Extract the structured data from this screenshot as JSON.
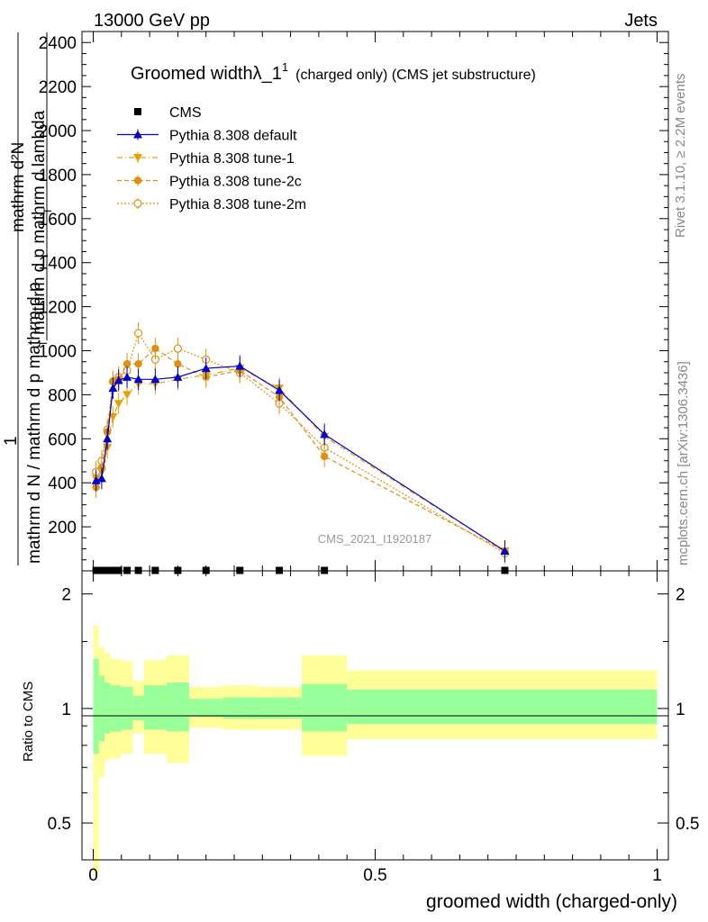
{
  "header": {
    "left": "13000 GeV pp",
    "right": "Jets"
  },
  "side_text": {
    "top": "Rivet 3.1.10, ≥ 2.2M events",
    "bottom": "mcplots.cern.ch [arXiv:1306.3436]"
  },
  "watermark": "CMS_2021_I1920187",
  "title": {
    "main": "Groomed widthλ_1",
    "sup": "1",
    "sub": "(charged only) (CMS jet substructure)"
  },
  "ylabel_main": {
    "numerator_line1": "mathrm d²N",
    "numerator_line2": "mathrm d p  mathrm d lambda",
    "numerator_sub": "T",
    "prefix": "1",
    "denominator": "mathrm d N / mathrm d p  mathrm d p",
    "denominator_sub": "T"
  },
  "ylabel_ratio": "Ratio to CMS",
  "xlabel": "groomed width (charged-only)",
  "colors": {
    "default": "#0000cc",
    "orange": "#e8a000",
    "dark_orange": "#e09010",
    "green": "#99ff99",
    "yellow": "#ffff99"
  },
  "chart_data": [
    {
      "type": "line",
      "xlim": [
        -0.02,
        1.02
      ],
      "ylim": [
        0,
        2450
      ],
      "yticks": [
        200,
        400,
        600,
        800,
        1000,
        1200,
        1400,
        1600,
        1800,
        2000,
        2200,
        2400
      ],
      "ytick_labels": [
        "200",
        "400",
        "600",
        "800",
        "1000",
        "1200",
        "1400",
        "1600",
        "1800",
        "2000",
        "2200",
        "2400"
      ],
      "legend": [
        "CMS",
        "Pythia 8.308 default",
        "Pythia 8.308 tune-1",
        "Pythia 8.308 tune-2c",
        "Pythia 8.308 tune-2m"
      ],
      "legend_position": "top-left",
      "cms": {
        "name": "CMS",
        "x": [
          0.005,
          0.015,
          0.025,
          0.035,
          0.045,
          0.06,
          0.08,
          0.11,
          0.15,
          0.2,
          0.26,
          0.33,
          0.41,
          0.73
        ],
        "y": [
          2,
          2,
          2,
          2,
          2,
          2,
          2,
          2,
          2,
          2,
          2,
          2,
          2,
          2
        ]
      },
      "series": [
        {
          "name": "Pythia 8.308 default",
          "style": "solid-triangle-up",
          "x": [
            0.005,
            0.015,
            0.025,
            0.035,
            0.045,
            0.06,
            0.08,
            0.11,
            0.15,
            0.2,
            0.26,
            0.33,
            0.41,
            0.73
          ],
          "y": [
            410,
            420,
            600,
            830,
            865,
            880,
            870,
            870,
            880,
            920,
            930,
            820,
            620,
            90
          ]
        },
        {
          "name": "Pythia 8.308 tune-1",
          "style": "dashdot-triangle-down",
          "x": [
            0.005,
            0.015,
            0.025,
            0.035,
            0.045,
            0.06,
            0.08,
            0.11,
            0.15,
            0.2,
            0.26,
            0.33,
            0.41,
            0.73
          ],
          "y": [
            420,
            450,
            560,
            700,
            760,
            800,
            850,
            850,
            870,
            890,
            920,
            830,
            610,
            90
          ]
        },
        {
          "name": "Pythia 8.308 tune-2c",
          "style": "dashed-circle",
          "x": [
            0.005,
            0.015,
            0.025,
            0.035,
            0.045,
            0.06,
            0.08,
            0.11,
            0.15,
            0.2,
            0.26,
            0.33,
            0.41,
            0.73
          ],
          "y": [
            380,
            470,
            630,
            860,
            870,
            940,
            940,
            1010,
            940,
            880,
            910,
            790,
            520,
            90
          ]
        },
        {
          "name": "Pythia 8.308 tune-2m",
          "style": "dotted-open-circle",
          "x": [
            0.005,
            0.015,
            0.025,
            0.035,
            0.045,
            0.06,
            0.08,
            0.11,
            0.15,
            0.2,
            0.26,
            0.33,
            0.41,
            0.73
          ],
          "y": [
            450,
            500,
            640,
            860,
            880,
            910,
            1080,
            960,
            1010,
            960,
            900,
            760,
            560,
            80
          ]
        }
      ]
    },
    {
      "type": "area",
      "title": "",
      "ylabel": "Ratio to CMS",
      "xlabel": "groomed width (charged-only)",
      "xlim": [
        -0.02,
        1.02
      ],
      "ylim": [
        0.4,
        2.3
      ],
      "log_y": true,
      "yticks": [
        0.5,
        1,
        2
      ],
      "ytick_labels": [
        "0.5",
        "1",
        "2"
      ],
      "xticks": [
        0,
        0.5,
        1
      ],
      "xtick_labels": [
        "0",
        "0.5",
        "1"
      ],
      "bins": [
        {
          "lo": 0.0,
          "hi": 0.01,
          "y_lo": 0.37,
          "y_hi": 1.65,
          "g_lo": 0.76,
          "g_hi": 1.35
        },
        {
          "lo": 0.01,
          "hi": 0.02,
          "y_lo": 0.66,
          "y_hi": 1.45,
          "g_lo": 0.82,
          "g_hi": 1.22
        },
        {
          "lo": 0.02,
          "hi": 0.03,
          "y_lo": 0.73,
          "y_hi": 1.4,
          "g_lo": 0.86,
          "g_hi": 1.17
        },
        {
          "lo": 0.03,
          "hi": 0.05,
          "y_lo": 0.74,
          "y_hi": 1.35,
          "g_lo": 0.87,
          "g_hi": 1.15
        },
        {
          "lo": 0.05,
          "hi": 0.07,
          "y_lo": 0.76,
          "y_hi": 1.33,
          "g_lo": 0.88,
          "g_hi": 1.14
        },
        {
          "lo": 0.07,
          "hi": 0.09,
          "y_lo": 0.86,
          "y_hi": 1.18,
          "g_lo": 0.93,
          "g_hi": 1.08
        },
        {
          "lo": 0.09,
          "hi": 0.13,
          "y_lo": 0.76,
          "y_hi": 1.34,
          "g_lo": 0.88,
          "g_hi": 1.15
        },
        {
          "lo": 0.13,
          "hi": 0.17,
          "y_lo": 0.72,
          "y_hi": 1.38,
          "g_lo": 0.87,
          "g_hi": 1.17
        },
        {
          "lo": 0.17,
          "hi": 0.23,
          "y_lo": 0.89,
          "y_hi": 1.14,
          "g_lo": 0.95,
          "g_hi": 1.06
        },
        {
          "lo": 0.23,
          "hi": 0.29,
          "y_lo": 0.88,
          "y_hi": 1.15,
          "g_lo": 0.94,
          "g_hi": 1.07
        },
        {
          "lo": 0.29,
          "hi": 0.37,
          "y_lo": 0.88,
          "y_hi": 1.14,
          "g_lo": 0.94,
          "g_hi": 1.07
        },
        {
          "lo": 0.37,
          "hi": 0.45,
          "y_lo": 0.75,
          "y_hi": 1.38,
          "g_lo": 0.87,
          "g_hi": 1.16
        },
        {
          "lo": 0.45,
          "hi": 1.0,
          "y_lo": 0.83,
          "y_hi": 1.26,
          "g_lo": 0.91,
          "g_hi": 1.12
        }
      ]
    }
  ]
}
